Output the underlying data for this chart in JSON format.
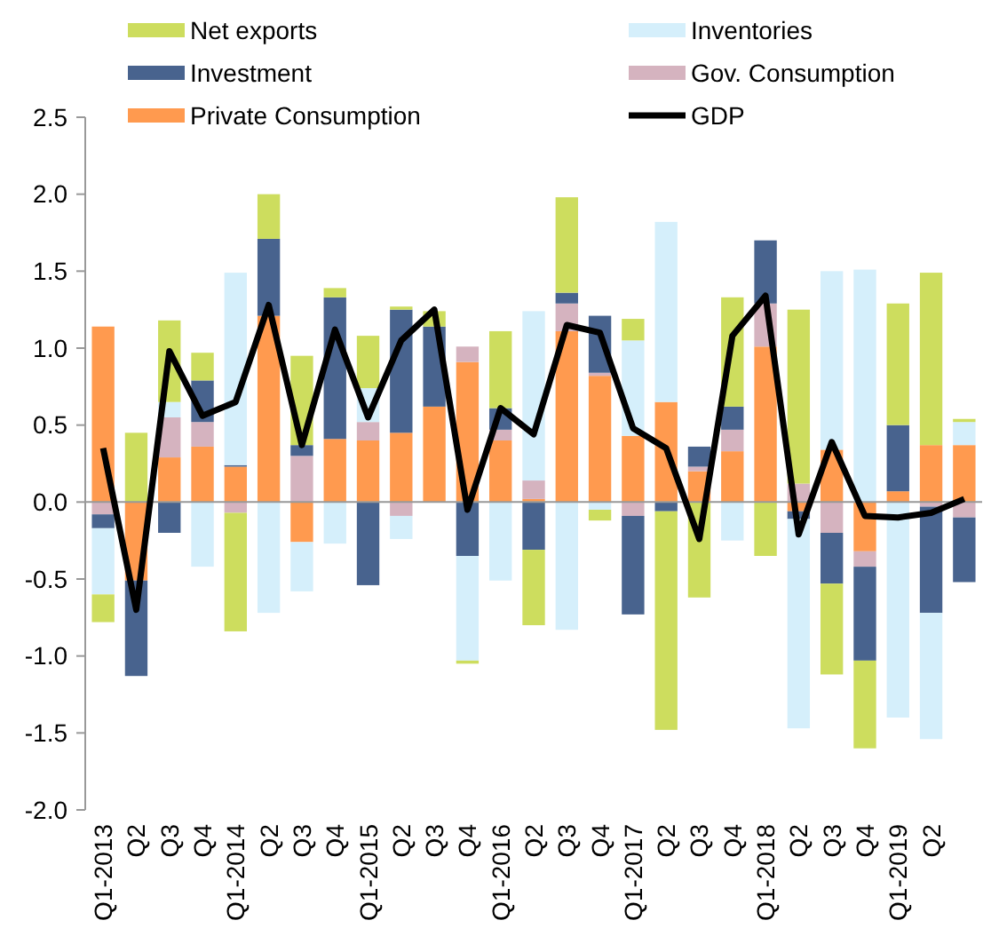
{
  "chart_data": {
    "type": "bar",
    "stacked": true,
    "categories": [
      "Q1-2013",
      "Q2",
      "Q3",
      "Q4",
      "Q1-2014",
      "Q2",
      "Q3",
      "Q4",
      "Q1-2015",
      "Q2",
      "Q3",
      "Q4",
      "Q1-2016",
      "Q2",
      "Q3",
      "Q4",
      "Q1-2017",
      "Q2",
      "Q3",
      "Q4",
      "Q1-2018",
      "Q2",
      "Q3",
      "Q4",
      "Q1-2019",
      "Q2",
      null
    ],
    "series": [
      {
        "name": "Private Consumption",
        "color": "#ff9a4f",
        "values": [
          1.14,
          -0.51,
          0.29,
          0.36,
          0.23,
          1.21,
          -0.26,
          0.41,
          0.4,
          0.45,
          0.62,
          0.91,
          0.4,
          0.02,
          1.11,
          0.82,
          0.43,
          0.65,
          0.2,
          0.33,
          1.01,
          -0.06,
          0.34,
          -0.32,
          0.07,
          0.37,
          0.37
        ]
      },
      {
        "name": "Gov. Consumption",
        "color": "#d5b3bf",
        "values": [
          -0.08,
          0,
          0.26,
          0.16,
          -0.07,
          0,
          0.3,
          0,
          0.12,
          -0.09,
          0,
          0.1,
          0.07,
          0.12,
          0.18,
          0.02,
          -0.09,
          0,
          0.03,
          0.14,
          0.28,
          0.12,
          -0.2,
          -0.1,
          0,
          -0.03,
          -0.1
        ]
      },
      {
        "name": "Investment",
        "color": "#48638e",
        "values": [
          -0.09,
          -0.62,
          -0.2,
          0.27,
          0.01,
          0.5,
          0.07,
          0.92,
          -0.54,
          0.8,
          0.52,
          -0.35,
          0.14,
          -0.31,
          0.07,
          0.37,
          -0.64,
          -0.06,
          0.13,
          0.15,
          0.41,
          -0.05,
          -0.33,
          -0.61,
          0.43,
          -0.69,
          -0.42
        ]
      },
      {
        "name": "Inventories",
        "color": "#d5effb",
        "values": [
          -0.43,
          0,
          0.1,
          -0.42,
          1.25,
          -0.72,
          -0.32,
          -0.27,
          0.22,
          -0.15,
          0,
          -0.68,
          -0.51,
          1.1,
          -0.83,
          -0.05,
          0.62,
          1.17,
          0,
          -0.25,
          0,
          -1.36,
          1.16,
          1.51,
          -1.4,
          -0.82,
          0.15
        ]
      },
      {
        "name": "Net exports",
        "color": "#cddd5e",
        "values": [
          -0.18,
          0.45,
          0.53,
          0.18,
          -0.77,
          0.29,
          0.58,
          0.06,
          0.34,
          0.02,
          0.1,
          -0.02,
          0.5,
          -0.49,
          0.62,
          -0.07,
          0.14,
          -1.42,
          -0.62,
          0.71,
          -0.35,
          1.13,
          -0.59,
          -0.57,
          0.79,
          1.12,
          0.02
        ]
      },
      {
        "name": "GDP",
        "type": "line",
        "color": "#000000",
        "values": [
          0.35,
          -0.7,
          0.98,
          0.56,
          0.65,
          1.28,
          0.37,
          1.12,
          0.55,
          1.05,
          1.25,
          -0.05,
          0.61,
          0.44,
          1.15,
          1.1,
          0.48,
          0.35,
          -0.24,
          1.08,
          1.34,
          -0.21,
          0.39,
          -0.09,
          -0.1,
          -0.07,
          0.02
        ]
      }
    ],
    "ylim": [
      -2.0,
      2.5
    ],
    "yticks": [
      {
        "value": -2.0,
        "label": "-2.0"
      },
      {
        "value": -1.5,
        "label": "-1.5"
      },
      {
        "value": -1.0,
        "label": "-1.0"
      },
      {
        "value": -0.5,
        "label": "-0.5"
      },
      {
        "value": 0,
        "label": "0.0"
      },
      {
        "value": 0.5,
        "label": "0.5"
      },
      {
        "value": 1.0,
        "label": "1.0"
      },
      {
        "value": 1.5,
        "label": "1.5"
      },
      {
        "value": 2.0,
        "label": "2.0"
      },
      {
        "value": 2.5,
        "label": "2.5"
      }
    ],
    "legend": "top",
    "marker": "none",
    "line_style": "solid"
  }
}
